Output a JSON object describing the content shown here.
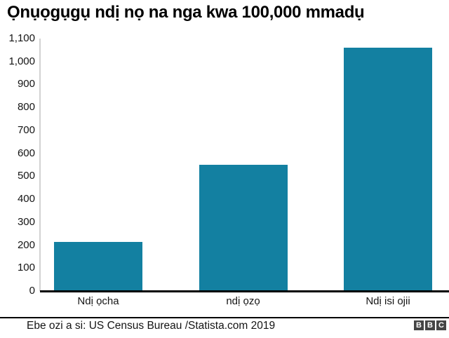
{
  "chart_data": {
    "type": "bar",
    "title": "Ọnụọgụgụ ndị nọ na nga kwa 100,000 mmadụ",
    "categories": [
      "Ndị ọcha",
      "ndị ọzọ",
      "Ndị isi ojii"
    ],
    "values": [
      215,
      550,
      1060
    ],
    "xlabel": "",
    "ylabel": "",
    "ylim": [
      0,
      1100
    ],
    "ytick_step": 100,
    "ytick_labels": [
      "0",
      "100",
      "200",
      "300",
      "400",
      "500",
      "600",
      "700",
      "800",
      "900",
      "1,000",
      "1,100"
    ],
    "grid": false,
    "legend": false,
    "bar_color": "#1380A1"
  },
  "footer": {
    "source": "Ebe ozi a si: US Census Bureau /Statista.com 2019",
    "bbc_logo_letters": [
      "B",
      "B",
      "C"
    ]
  },
  "colors": {
    "bar": "#1380A1",
    "baseline": "#000000",
    "y_axis_line": "#d2d2d2",
    "text": "#141414",
    "logo_background": "#454545",
    "logo_text": "#ffffff"
  }
}
